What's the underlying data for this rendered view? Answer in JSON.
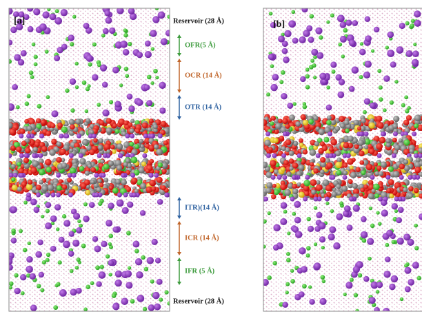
{
  "panels": [
    {
      "label": "[a]"
    },
    {
      "label": "[b]"
    }
  ],
  "reservoir_top": "Reservoir (28 Å)",
  "regions": [
    {
      "label": "OFR(5 Å)",
      "color": "#3d9b3d"
    },
    {
      "label": "OCR (14 Å)",
      "color": "#c0652a"
    },
    {
      "label": "OTR (14 Å)",
      "color": "#2f62a0"
    },
    {
      "label": "ITR)(14 Å)",
      "color": "#2f62a0"
    },
    {
      "label": "ICR (14 Å)",
      "color": "#c0652a"
    },
    {
      "label": "IFR (5 Å)",
      "color": "#3d9b3d"
    }
  ],
  "reservoir_bottom": "Reservoir (28 Å)"
}
